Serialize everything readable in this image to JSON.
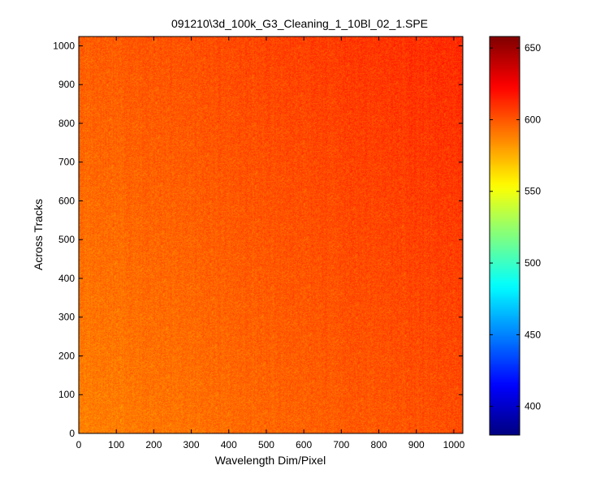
{
  "chart_data": {
    "type": "heatmap",
    "title": "091210\\3d_100k_G3_Cleaning_1_10Bl_02_1.SPE",
    "xlabel": "Wavelength Dim/Pixel",
    "ylabel": "Across Tracks",
    "xlim": [
      0,
      1024
    ],
    "ylim": [
      0,
      1024
    ],
    "x_ticks": [
      0,
      100,
      200,
      300,
      400,
      500,
      600,
      700,
      800,
      900,
      1000
    ],
    "y_ticks": [
      0,
      100,
      200,
      300,
      400,
      500,
      600,
      700,
      800,
      900,
      1000
    ],
    "colormap": "jet",
    "colorbar": {
      "range": [
        380,
        658
      ],
      "ticks": [
        400,
        450,
        500,
        550,
        600,
        650
      ]
    },
    "value_trend": {
      "low_corner_value": 588,
      "high_corner_value": 612,
      "noise_amplitude": 10
    },
    "grid": false,
    "legend": "none"
  }
}
